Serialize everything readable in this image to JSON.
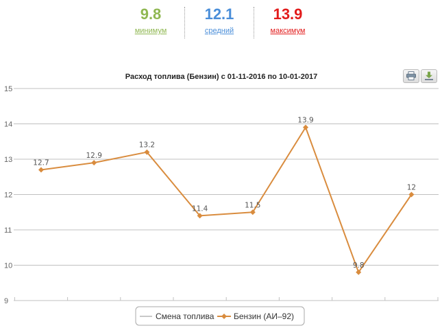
{
  "summary": {
    "min": {
      "value": "9.8",
      "label": "минимум"
    },
    "avg": {
      "value": "12.1",
      "label": "средний"
    },
    "max": {
      "value": "13.9",
      "label": "максимум"
    }
  },
  "toolbar": {
    "print_icon": "printer-icon",
    "download_icon": "download-icon"
  },
  "colors": {
    "series": "#d98c3e",
    "min": "#8fb751",
    "avg": "#4a8ed9",
    "max": "#e21b1b",
    "grid": "#c0c0c0"
  },
  "chart_data": {
    "type": "line",
    "title": "Расход топлива (Бензин) с 01-11-2016 по 10-01-2017",
    "ylim": [
      9,
      15
    ],
    "yticks": [
      9,
      10,
      11,
      12,
      13,
      14,
      15
    ],
    "grid": true,
    "legend_position": "bottom",
    "point_count": 8,
    "series": [
      {
        "name": "Смена топлива",
        "values": []
      },
      {
        "name": "Бензин (АИ–92)",
        "values": [
          12.7,
          12.9,
          13.2,
          11.4,
          11.5,
          13.9,
          9.8,
          12
        ],
        "labels": [
          "12.7",
          "12.9",
          "13.2",
          "11.4",
          "11.5",
          "13.9",
          "9.8",
          "12"
        ]
      }
    ]
  }
}
